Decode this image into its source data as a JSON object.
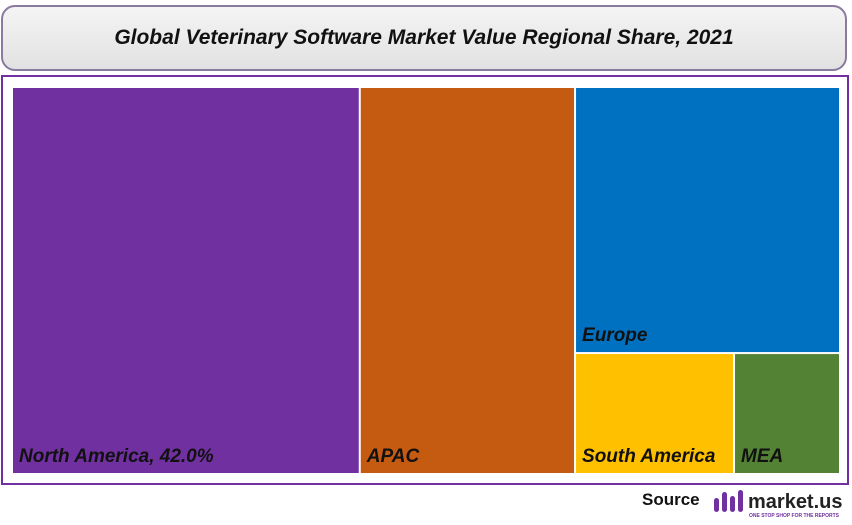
{
  "header": {
    "title": "Global Veterinary Software Market Value Regional Share, 2021"
  },
  "chart_data": {
    "type": "treemap",
    "labels": [
      "North America, 42.0%",
      "APAC",
      "Europe",
      "South America",
      "MEA"
    ],
    "values": [
      42.0,
      26.0,
      22.0,
      6.0,
      4.0
    ],
    "colors": [
      "#7030a0",
      "#c55a11",
      "#0070c0",
      "#ffc000",
      "#548235"
    ]
  },
  "footer": {
    "source": "Source",
    "brand": "market.us",
    "tagline": "ONE STOP SHOP FOR THE REPORTS"
  }
}
